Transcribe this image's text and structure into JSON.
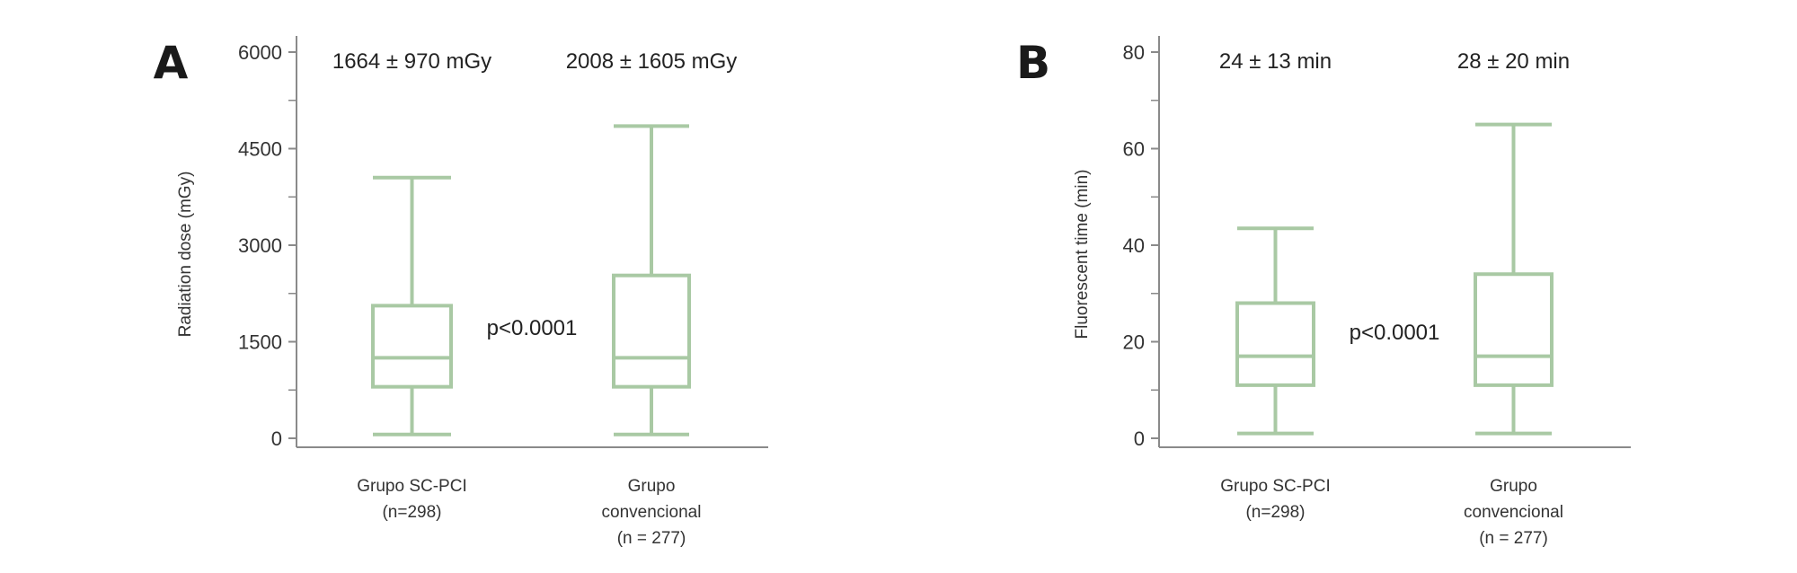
{
  "chart_data": [
    {
      "type": "box",
      "panel_label": "A",
      "ylabel": "Radiation dose (mGy)",
      "ylim": [
        0,
        6000
      ],
      "yticks": [
        0,
        1500,
        3000,
        4500,
        6000
      ],
      "yticks_minor": [
        750,
        2250,
        3750,
        5250
      ],
      "ytick_labels": [
        "0",
        "1500",
        "3000",
        "4500",
        "6000"
      ],
      "groups": [
        {
          "label_lines": [
            "Grupo SC-PCI",
            "(n=298)"
          ],
          "summary": "1664 ± 970 mGy",
          "whisker_low": 60,
          "q1": 800,
          "median": 1250,
          "q3": 2060,
          "whisker_high": 4050
        },
        {
          "label_lines": [
            "Grupo",
            "convencional",
            "(n = 277)"
          ],
          "summary": "2008 ± 1605 mGy",
          "whisker_low": 60,
          "q1": 800,
          "median": 1250,
          "q3": 2530,
          "whisker_high": 4850
        }
      ],
      "pvalue": "p<0.0001",
      "box_color": "#a9c9a4",
      "grid": false
    },
    {
      "type": "box",
      "panel_label": "B",
      "ylabel": "Fluorescent time (min)",
      "ylim": [
        0,
        80
      ],
      "yticks": [
        0,
        20,
        40,
        60,
        80
      ],
      "yticks_minor": [
        10,
        30,
        50,
        70
      ],
      "ytick_labels": [
        "0",
        "20",
        "40",
        "60",
        "80"
      ],
      "groups": [
        {
          "label_lines": [
            "Grupo SC-PCI",
            "(n=298)"
          ],
          "summary": "24 ± 13 min",
          "whisker_low": 1,
          "q1": 11,
          "median": 17,
          "q3": 28,
          "whisker_high": 43.5
        },
        {
          "label_lines": [
            "Grupo",
            "convencional",
            "(n = 277)"
          ],
          "summary": "28 ± 20 min",
          "whisker_low": 1,
          "q1": 11,
          "median": 17,
          "q3": 34,
          "whisker_high": 65
        }
      ],
      "pvalue": "p<0.0001",
      "box_color": "#a9c9a4",
      "grid": false
    }
  ]
}
